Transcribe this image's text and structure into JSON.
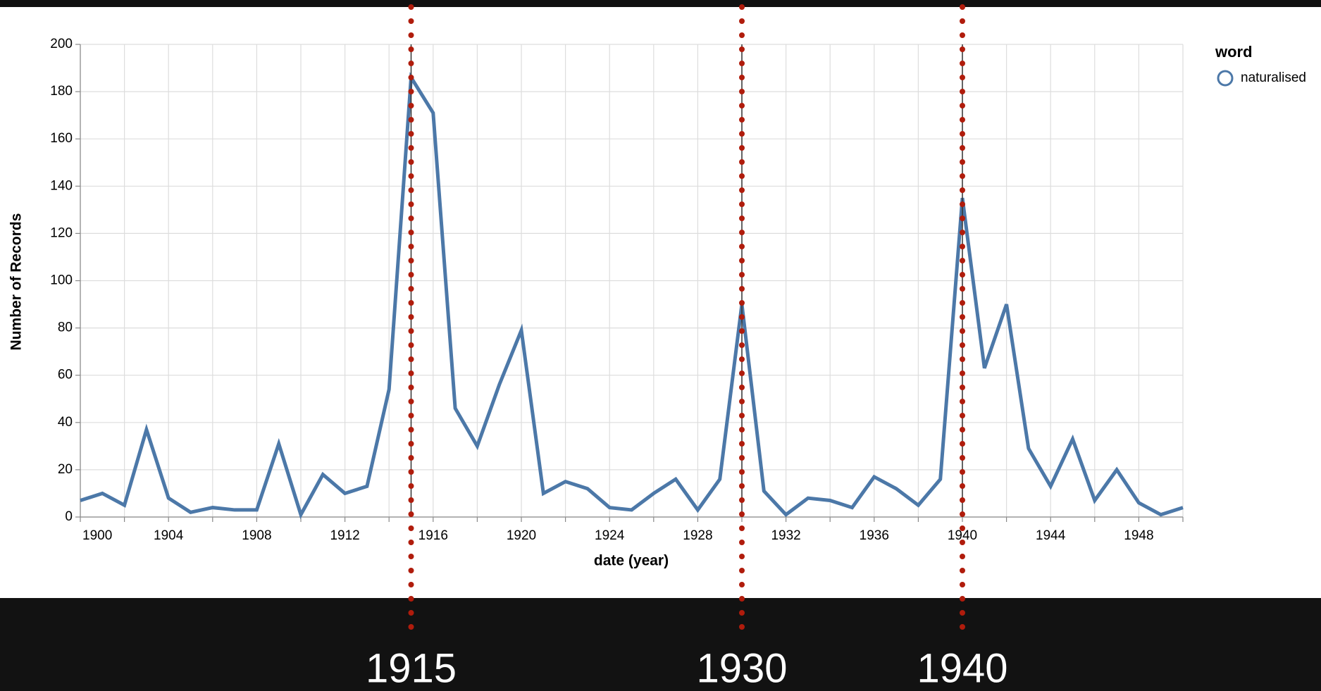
{
  "chart_data": {
    "type": "line",
    "x_label": "date (year)",
    "y_label": "Number of Records",
    "x": [
      1900,
      1901,
      1902,
      1903,
      1904,
      1905,
      1906,
      1907,
      1908,
      1909,
      1910,
      1911,
      1912,
      1913,
      1914,
      1915,
      1916,
      1917,
      1918,
      1919,
      1920,
      1921,
      1922,
      1923,
      1924,
      1925,
      1926,
      1927,
      1928,
      1929,
      1930,
      1931,
      1932,
      1933,
      1934,
      1935,
      1936,
      1937,
      1938,
      1939,
      1940,
      1941,
      1942,
      1943,
      1944,
      1945,
      1946,
      1947,
      1948,
      1949,
      1950
    ],
    "series": [
      {
        "name": "naturalised",
        "color": "#4c78a8",
        "values": [
          7,
          10,
          5,
          37,
          8,
          2,
          4,
          3,
          3,
          31,
          1,
          18,
          10,
          13,
          54,
          186,
          171,
          46,
          30,
          56,
          79,
          10,
          15,
          12,
          4,
          3,
          10,
          16,
          3,
          16,
          90,
          11,
          1,
          8,
          7,
          4,
          17,
          12,
          5,
          16,
          135,
          63,
          90,
          29,
          13,
          33,
          7,
          20,
          6,
          1,
          4
        ]
      }
    ],
    "legend_title": "word",
    "xlim": [
      1900,
      1950
    ],
    "xticks": [
      1900,
      1904,
      1908,
      1912,
      1916,
      1920,
      1924,
      1928,
      1932,
      1936,
      1940,
      1944,
      1948
    ],
    "x_minor_ticks": [
      1900,
      1902,
      1904,
      1906,
      1908,
      1910,
      1912,
      1914,
      1916,
      1918,
      1920,
      1922,
      1924,
      1926,
      1928,
      1930,
      1932,
      1934,
      1936,
      1938,
      1940,
      1942,
      1944,
      1946,
      1948,
      1950
    ],
    "ylim": [
      0,
      200
    ],
    "yticks": [
      0,
      20,
      40,
      60,
      80,
      100,
      120,
      140,
      160,
      180,
      200
    ],
    "grid": true,
    "annotations": [
      1915,
      1930,
      1940
    ],
    "annotation_color": "#b01c0c"
  }
}
